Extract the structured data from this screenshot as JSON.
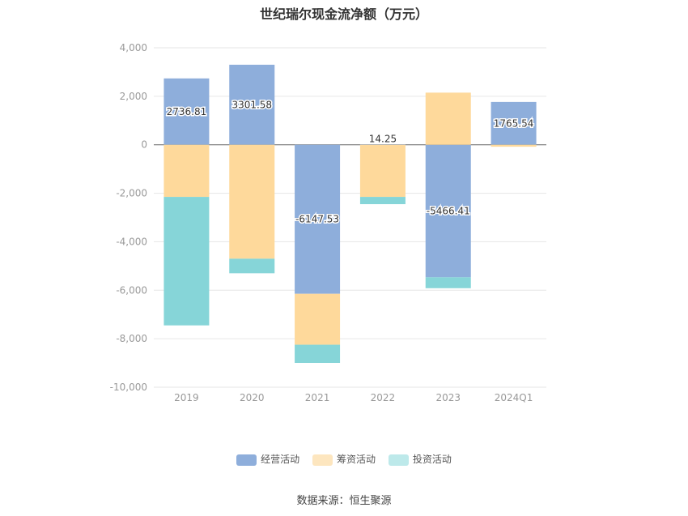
{
  "chart_data": {
    "type": "bar",
    "stacked": true,
    "title": "世纪瑞尔现金流净额（万元）",
    "categories": [
      "2019",
      "2020",
      "2021",
      "2022",
      "2023",
      "2024Q1"
    ],
    "series": [
      {
        "name": "经营活动",
        "color": "#8eaedb",
        "values": [
          2736.81,
          3301.58,
          -6147.53,
          14.25,
          -5466.41,
          1765.54
        ]
      },
      {
        "name": "筹资活动",
        "color": "#fed99b",
        "values": [
          -2150,
          -4700,
          -2100,
          -2150,
          2150,
          -80
        ]
      },
      {
        "name": "投资活动",
        "color": "#86d5d8",
        "values": [
          -5300,
          -600,
          -750,
          -300,
          -450,
          0
        ]
      }
    ],
    "data_labels": {
      "经营活动": [
        "2736.81",
        "3301.58",
        "-6147.53",
        "14.25",
        "-5466.41",
        "1765.54"
      ]
    },
    "ylim": [
      -10000,
      4000
    ],
    "yticks": [
      4000,
      2000,
      0,
      -2000,
      -4000,
      -6000,
      -8000,
      -10000
    ],
    "ytick_labels": [
      "4,000",
      "2,000",
      "0",
      "-2,000",
      "-4,000",
      "-6,000",
      "-8,000",
      "-10,000"
    ],
    "grid": true,
    "legend_position": "bottom"
  },
  "legend": {
    "items": [
      {
        "label": "经营活动",
        "color": "#8eaedb"
      },
      {
        "label": "筹资活动",
        "color": "#fde6bf"
      },
      {
        "label": "投资活动",
        "color": "#bde9ea"
      }
    ]
  },
  "source": "数据来源：恒生聚源"
}
